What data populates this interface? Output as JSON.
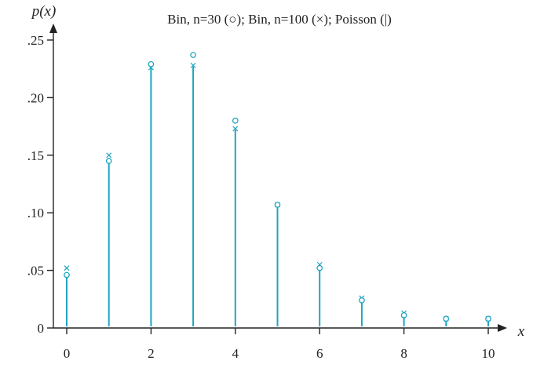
{
  "colors": {
    "series": "#1fa6c0",
    "axis": "#222222"
  },
  "chart_data": {
    "type": "scatter",
    "title": "Bin, n=30 (○); Bin, n=100 (×); Poisson (|)",
    "xlabel": "x",
    "ylabel": "p(x)",
    "xlim": [
      0,
      10
    ],
    "ylim": [
      0,
      0.25
    ],
    "x_ticks": [
      "0",
      "2",
      "4",
      "6",
      "8",
      "10"
    ],
    "y_ticks": [
      "0",
      ".05",
      ".10",
      ".15",
      ".20",
      ".25"
    ],
    "y_tick_values": [
      0,
      0.05,
      0.1,
      0.15,
      0.2,
      0.25
    ],
    "x_tick_values": [
      0,
      2,
      4,
      6,
      8,
      10
    ],
    "x": [
      0,
      1,
      2,
      3,
      4,
      5,
      6,
      7,
      8,
      9,
      10
    ],
    "series": [
      {
        "marker": "circle",
        "values": [
          0.046,
          0.145,
          0.229,
          0.237,
          0.18,
          0.107,
          0.052,
          0.024,
          0.011,
          0.008,
          0.008
        ]
      },
      {
        "marker": "x",
        "values": [
          0.052,
          0.15,
          0.226,
          0.228,
          0.173,
          0.107,
          0.055,
          0.026,
          0.013,
          0.008,
          0.008
        ]
      },
      {
        "marker": "line",
        "values": [
          0.045,
          0.145,
          0.226,
          0.227,
          0.172,
          0.107,
          0.052,
          0.022,
          0.01,
          0.006,
          0.006
        ]
      }
    ],
    "grid": false
  }
}
